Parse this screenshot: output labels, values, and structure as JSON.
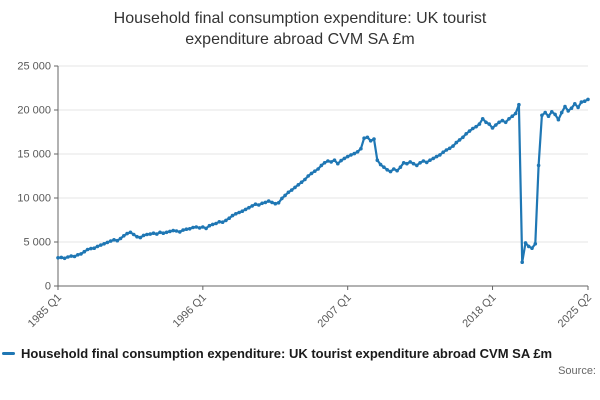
{
  "title": "Household final consumption expenditure: UK tourist expenditure abroad CVM SA £m",
  "source_label": "Source:",
  "legend": {
    "label": "Household final consumption expenditure: UK tourist expenditure abroad CVM SA £m",
    "color": "#1f77b4"
  },
  "chart_data": {
    "type": "line",
    "title": "Household final consumption expenditure: UK tourist expenditure abroad CVM SA £m",
    "xlabel": "",
    "ylabel": "",
    "grid": true,
    "legend_position": "bottom",
    "line_color": "#1f77b4",
    "ylim": [
      0,
      25000
    ],
    "y_ticks": [
      0,
      5000,
      10000,
      15000,
      20000,
      25000
    ],
    "y_tick_labels": [
      "0",
      "5 000",
      "10 000",
      "15 000",
      "20 000",
      "25 000"
    ],
    "x_start": "1985 Q1",
    "x_end": "2025 Q2",
    "x_frequency": "quarterly",
    "x_ticks": [
      {
        "index": 0,
        "label": "1985 Q1"
      },
      {
        "index": 44,
        "label": "1996 Q1"
      },
      {
        "index": 88,
        "label": "2007 Q1"
      },
      {
        "index": 132,
        "label": "2018 Q1"
      },
      {
        "index": 161,
        "label": "2025 Q2"
      }
    ],
    "values": [
      3200,
      3250,
      3150,
      3300,
      3400,
      3350,
      3550,
      3650,
      3900,
      4150,
      4250,
      4300,
      4500,
      4650,
      4800,
      4950,
      5100,
      5250,
      5150,
      5400,
      5700,
      5950,
      6100,
      5850,
      5600,
      5500,
      5750,
      5850,
      5900,
      6000,
      5900,
      6100,
      6000,
      6100,
      6200,
      6300,
      6250,
      6150,
      6350,
      6450,
      6500,
      6650,
      6700,
      6600,
      6700,
      6550,
      6850,
      7000,
      7100,
      7300,
      7250,
      7450,
      7700,
      8000,
      8200,
      8350,
      8500,
      8700,
      8900,
      9100,
      9300,
      9200,
      9400,
      9500,
      9650,
      9500,
      9350,
      9450,
      9950,
      10300,
      10650,
      10900,
      11200,
      11500,
      11800,
      12100,
      12500,
      12800,
      13050,
      13300,
      13700,
      14000,
      14200,
      14100,
      14300,
      13900,
      14250,
      14500,
      14700,
      14900,
      15050,
      15250,
      15600,
      16800,
      16900,
      16500,
      16700,
      14300,
      13800,
      13500,
      13200,
      13000,
      13300,
      13100,
      13500,
      14000,
      13900,
      14100,
      13900,
      13700,
      14000,
      14200,
      14050,
      14300,
      14500,
      14700,
      14900,
      15200,
      15450,
      15650,
      15900,
      16300,
      16600,
      16900,
      17300,
      17600,
      17900,
      18100,
      18400,
      19000,
      18600,
      18400,
      17950,
      18300,
      18600,
      18800,
      18600,
      19000,
      19300,
      19600,
      20600,
      2700,
      4900,
      4500,
      4300,
      4800,
      13700,
      19400,
      19700,
      19300,
      19800,
      19500,
      18900,
      19700,
      20400,
      19900,
      20200,
      20700,
      20300,
      20900,
      21000,
      21200
    ]
  }
}
